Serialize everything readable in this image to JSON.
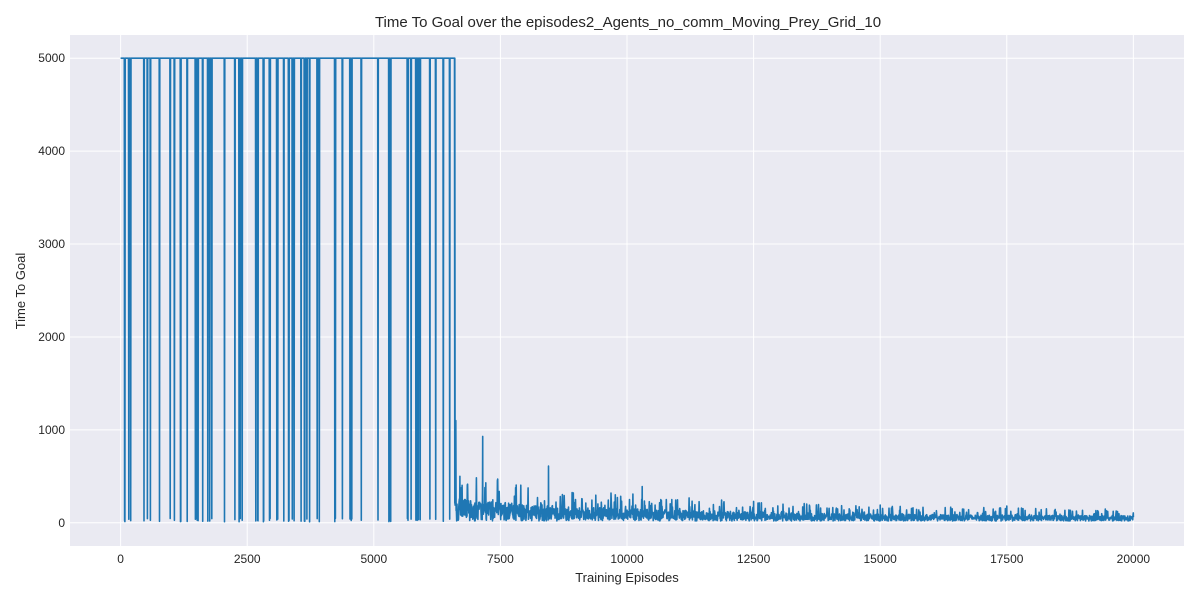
{
  "chart_data": {
    "type": "line",
    "title": "Time To Goal over the episodes2_Agents_no_comm_Moving_Prey_Grid_10",
    "xlabel": "Training Episodes",
    "ylabel": "Time To Goal",
    "xlim": [
      -1000,
      21000
    ],
    "ylim": [
      -250,
      5250
    ],
    "x_ticks": [
      0,
      2500,
      5000,
      7500,
      10000,
      12500,
      15000,
      17500,
      20000
    ],
    "x_tick_labels": [
      "0",
      "2500",
      "5000",
      "7500",
      "10000",
      "12500",
      "15000",
      "17500",
      "20000"
    ],
    "y_ticks": [
      0,
      1000,
      2000,
      3000,
      4000,
      5000
    ],
    "y_tick_labels": [
      "0",
      "1000",
      "2000",
      "3000",
      "4000",
      "5000"
    ],
    "grid": true,
    "series": [
      {
        "color": "#1f77b4",
        "episodes": 20000,
        "max_value": 5000,
        "description_points": [
          {
            "x": 0,
            "y": 5000
          },
          {
            "x": 6600,
            "y": 5000
          },
          {
            "x": 6620,
            "y": 1100
          },
          {
            "x": 6700,
            "y": 500
          },
          {
            "x": 7150,
            "y": 930
          },
          {
            "x": 8450,
            "y": 610
          },
          {
            "x": 10300,
            "y": 390
          },
          {
            "x": 12500,
            "y": 230
          },
          {
            "x": 15000,
            "y": 190
          },
          {
            "x": 17500,
            "y": 180
          },
          {
            "x": 20000,
            "y": 60
          }
        ]
      }
    ]
  },
  "colors": {
    "plot_background": "#eaeaf2",
    "grid": "#ffffff",
    "line": "#1f77b4"
  }
}
